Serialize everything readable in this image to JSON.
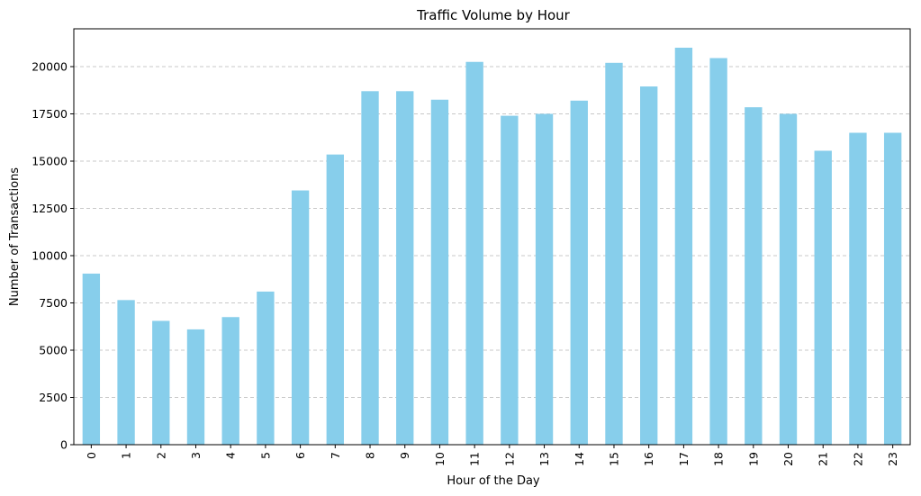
{
  "chart_data": {
    "type": "bar",
    "title": "Traffic Volume by Hour",
    "xlabel": "Hour of the Day",
    "ylabel": "Number of Transactions",
    "categories": [
      "0",
      "1",
      "2",
      "3",
      "4",
      "5",
      "6",
      "7",
      "8",
      "9",
      "10",
      "11",
      "12",
      "13",
      "14",
      "15",
      "16",
      "17",
      "18",
      "19",
      "20",
      "21",
      "22",
      "23"
    ],
    "values": [
      9050,
      7650,
      6550,
      6100,
      6750,
      8100,
      13450,
      15350,
      18700,
      18700,
      18250,
      20250,
      17400,
      17500,
      18200,
      20200,
      18950,
      21000,
      20450,
      17850,
      17500,
      15550,
      16500,
      16500
    ],
    "ylim": [
      0,
      22000
    ],
    "yticks": [
      0,
      2500,
      5000,
      7500,
      10000,
      12500,
      15000,
      17500,
      20000
    ],
    "grid": "y-dashed",
    "legend": "none",
    "colors": {
      "bar": "#87ceeb",
      "grid": "#c8c8c8",
      "axis": "#000000"
    }
  }
}
